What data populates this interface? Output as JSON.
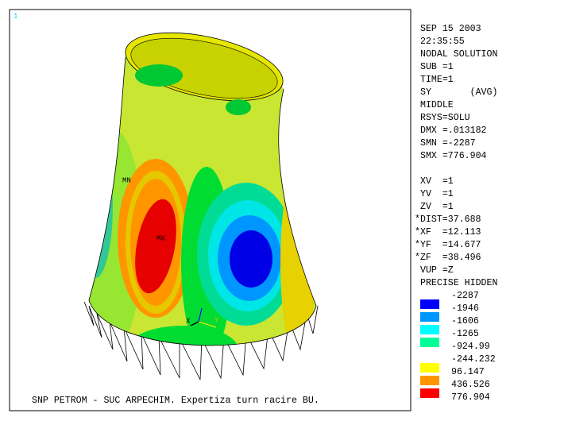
{
  "viewport": {
    "window_number": "1",
    "labels": {
      "mn": "MN",
      "mx": "MX",
      "x_axis": "X",
      "y_axis": "Y"
    },
    "caption": "SNP PETROM - SUC ARPECHIM. Expertiza turn racire BU."
  },
  "info": {
    "status": [
      "SEP 15 2003",
      "22:35:55",
      "NODAL SOLUTION",
      "SUB =1",
      "TIME=1",
      "SY       (AVG)",
      "MIDDLE",
      "RSYS=SOLU",
      "DMX =.013182",
      "SMN =-2287",
      "SMX =776.904"
    ],
    "view": [
      "XV  =1",
      "YV  =1",
      "ZV  =1",
      "*DIST=37.688",
      "*XF  =12.113",
      "*YF  =14.677",
      "*ZF  =38.496",
      "VUP =Z",
      "PRECISE HIDDEN"
    ]
  },
  "legend": {
    "entries": [
      {
        "label": "-2287"
      },
      {
        "label": "-1946",
        "color": "#0000ff"
      },
      {
        "label": "-1606",
        "color": "#0096ff"
      },
      {
        "label": "-1265",
        "color": "#00ffff"
      },
      {
        "label": "-924.99",
        "color": "#00ff96"
      },
      {
        "label": "-244.232"
      },
      {
        "label": "96.147",
        "color": "#ffff00"
      },
      {
        "label": "436.526",
        "color": "#ff9600"
      },
      {
        "label": "776.904",
        "color": "#ff0000"
      }
    ]
  }
}
